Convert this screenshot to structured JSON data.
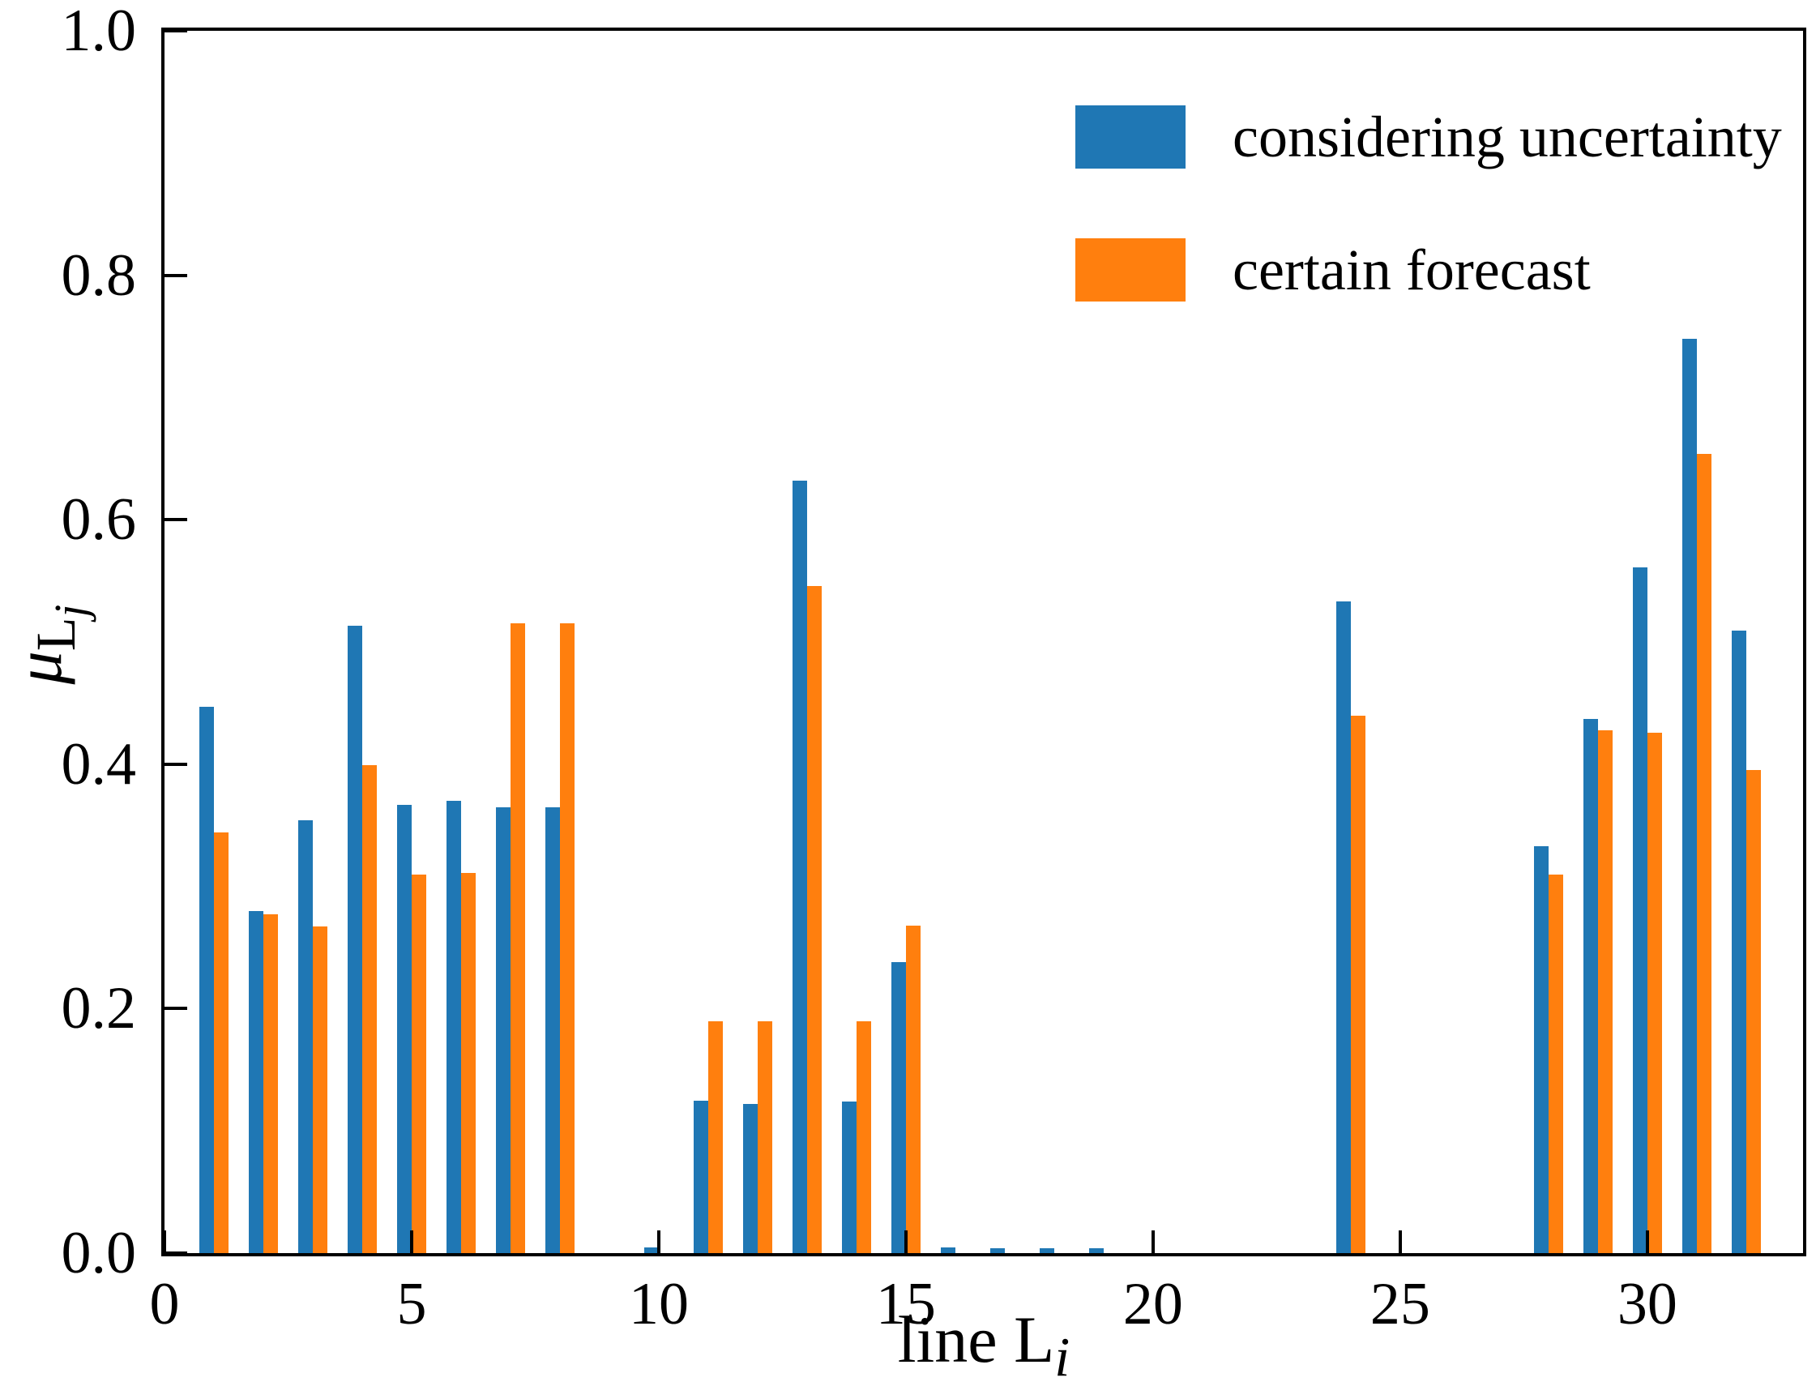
{
  "chart_data": {
    "type": "bar",
    "title": "",
    "xlabel_text": "line L",
    "xlabel_sub_italic": "i",
    "ylabel_main_italic": "μ",
    "ylabel_sub": "L",
    "ylabel_subsub_italic": "j",
    "categories": [
      1,
      2,
      3,
      4,
      5,
      6,
      7,
      8,
      9,
      10,
      11,
      12,
      13,
      14,
      15,
      16,
      17,
      18,
      19,
      20,
      21,
      22,
      23,
      24,
      25,
      26,
      27,
      28,
      29,
      30,
      31,
      32
    ],
    "series": [
      {
        "name": "considering uncertainty",
        "color": "#1f77b4",
        "values": [
          0.447,
          0.28,
          0.354,
          0.513,
          0.367,
          0.37,
          0.365,
          0.365,
          0,
          0.005,
          0.125,
          0.122,
          0.632,
          0.124,
          0.238,
          0.005,
          0.004,
          0.004,
          0.004,
          0,
          0,
          0,
          0,
          0.533,
          0,
          0,
          0,
          0.333,
          0.437,
          0.561,
          0.748,
          0.509
        ]
      },
      {
        "name": "certain forecast",
        "color": "#ff7f0e",
        "values": [
          0.344,
          0.277,
          0.267,
          0.399,
          0.31,
          0.311,
          0.515,
          0.515,
          0,
          0,
          0.19,
          0.19,
          0.546,
          0.19,
          0.268,
          0,
          0,
          0,
          0,
          0,
          0,
          0,
          0,
          0.44,
          0,
          0,
          0,
          0.31,
          0.428,
          0.426,
          0.654,
          0.395
        ]
      }
    ],
    "bar_width_units": 0.3,
    "xlim": [
      0,
      33.15
    ],
    "ylim": [
      0,
      1.0
    ],
    "xticks": [
      0,
      5,
      10,
      15,
      20,
      25,
      30
    ],
    "ytick_labels": [
      "0.0",
      "0.2",
      "0.4",
      "0.6",
      "0.8",
      "1.0"
    ],
    "grid": false,
    "legend_position": "upper right",
    "axis_color": "#000000"
  },
  "legend": {
    "items": [
      {
        "label": "considering uncertainty",
        "color": "#1f77b4"
      },
      {
        "label": "certain forecast",
        "color": "#ff7f0e"
      }
    ]
  }
}
